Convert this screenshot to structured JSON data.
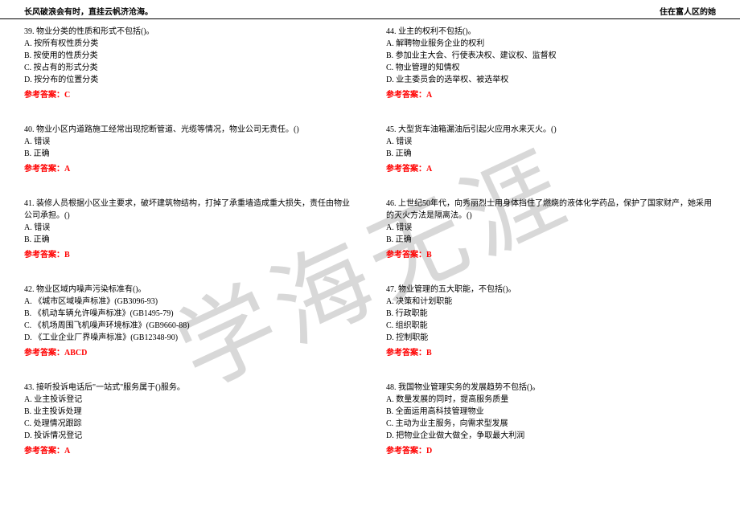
{
  "header": {
    "left": "长风破浪会有时，直挂云帆济沧海。",
    "right": "住在富人区的她"
  },
  "watermark": "学海无涯",
  "answer_label": "参考答案：",
  "left_questions": [
    {
      "num": "39.",
      "text": "物业分类的性质和形式不包括()。",
      "opts": [
        "A. 按所有权性质分类",
        "B. 按使用的性质分类",
        "C. 按占有的形式分类",
        "D. 按分布的位置分类"
      ],
      "answer": "C"
    },
    {
      "num": "40.",
      "text": "物业小区内道路施工经常出现挖断管道、光缆等情况，物业公司无责任。()",
      "opts": [
        "A. 错误",
        "B. 正确"
      ],
      "answer": "A"
    },
    {
      "num": "41.",
      "text": "装修人员根据小区业主要求，破坏建筑物结构，打掉了承重墙造成重大损失，责任由物业公司承担。()",
      "opts": [
        "A. 错误",
        "B. 正确"
      ],
      "answer": "B"
    },
    {
      "num": "42.",
      "text": "物业区域内噪声污染标准有()。",
      "opts": [
        "A. 《城市区域噪声标准》(GB3096-93)",
        "B. 《机动车辆允许噪声标准》(GB1495-79)",
        "C. 《机场周围飞机噪声环境标准》(GB9660-88)",
        "D. 《工业企业厂界噪声标准》(GB12348-90)"
      ],
      "answer": "ABCD"
    },
    {
      "num": "43.",
      "text": "接听投诉电话后\"一站式\"服务属于()服务。",
      "opts": [
        "A. 业主投诉登记",
        "B. 业主投诉处理",
        "C. 处理情况跟踪",
        "D. 投诉情况登记"
      ],
      "answer": "A"
    }
  ],
  "right_questions": [
    {
      "num": "44.",
      "text": "业主的权利不包括()。",
      "opts": [
        "A. 解聘物业服务企业的权利",
        "B. 参加业主大会、行使表决权、建议权、监督权",
        "C. 物业管理的知情权",
        "D. 业主委员会的选举权、被选举权"
      ],
      "answer": "A"
    },
    {
      "num": "45.",
      "text": "大型货车油箱漏油后引起火应用水来灭火。()",
      "opts": [
        "A. 错误",
        "B. 正确"
      ],
      "answer": "A"
    },
    {
      "num": "46.",
      "text": "上世纪50年代，向秀丽烈士用身体挡住了燃烧的液体化学药品，保护了国家财产，她采用的灭火方法是隔离法。()",
      "opts": [
        "A. 错误",
        "B. 正确"
      ],
      "answer": "B"
    },
    {
      "num": "47.",
      "text": "物业管理的五大职能，不包括()。",
      "opts": [
        "A. 决策和计划职能",
        "B. 行政职能",
        "C. 组织职能",
        "D. 控制职能"
      ],
      "answer": "B"
    },
    {
      "num": "48.",
      "text": "我国物业管理实务的发展趋势不包括()。",
      "opts": [
        "A. 数量发展的同时，提高服务质量",
        "B. 全面运用高科技管理物业",
        "C. 主动为业主服务，向需求型发展",
        "D. 把物业企业做大做全，争取最大利润"
      ],
      "answer": "D"
    }
  ]
}
